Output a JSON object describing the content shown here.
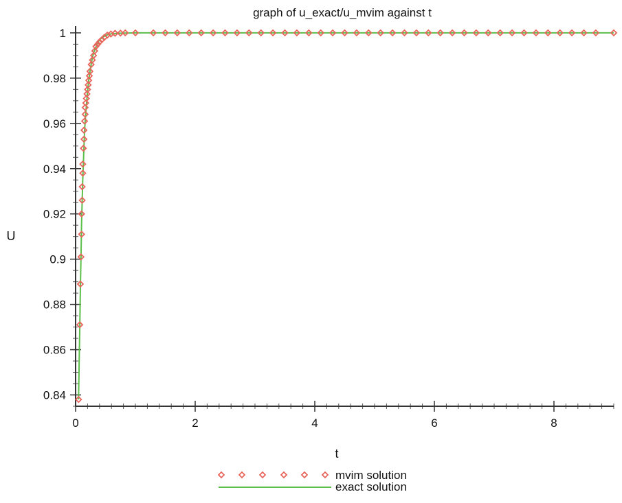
{
  "chart_data": {
    "type": "line",
    "title": "graph of u_exact/u_mvim against t",
    "xlabel": "t",
    "ylabel": "U",
    "xlim": [
      0,
      9
    ],
    "ylim": [
      0.835,
      1.003
    ],
    "x_ticks": [
      0,
      2,
      4,
      6,
      8
    ],
    "x_tick_labels": [
      "0",
      "2",
      "4",
      "6",
      "8"
    ],
    "y_ticks": [
      0.84,
      0.86,
      0.88,
      0.9,
      0.92,
      0.94,
      0.96,
      0.98,
      1
    ],
    "y_tick_labels": [
      "0.84",
      "0.86",
      "0.88",
      "0.9",
      "0.92",
      "0.94",
      "0.96",
      "0.98",
      "1"
    ],
    "grid": false,
    "legend_position": "bottom",
    "series": [
      {
        "name": "mvim solution",
        "style": "markers",
        "color": "#e8655c",
        "x": [
          0.05,
          0.07,
          0.08,
          0.09,
          0.1,
          0.1,
          0.11,
          0.11,
          0.12,
          0.12,
          0.13,
          0.14,
          0.14,
          0.15,
          0.16,
          0.16,
          0.17,
          0.18,
          0.19,
          0.2,
          0.21,
          0.22,
          0.23,
          0.24,
          0.26,
          0.28,
          0.3,
          0.32,
          0.34,
          0.37,
          0.4,
          0.44,
          0.48,
          0.53,
          0.59,
          0.66,
          0.75,
          0.83,
          1.0,
          1.3,
          1.5,
          1.7,
          1.9,
          2.1,
          2.3,
          2.5,
          2.7,
          2.9,
          3.1,
          3.3,
          3.5,
          3.7,
          3.9,
          4.1,
          4.3,
          4.5,
          4.7,
          4.9,
          5.1,
          5.3,
          5.5,
          5.7,
          5.9,
          6.1,
          6.3,
          6.5,
          6.7,
          6.9,
          7.1,
          7.3,
          7.5,
          7.7,
          7.9,
          8.1,
          8.3,
          8.5,
          8.7,
          9.0
        ],
        "y": [
          0.838,
          0.871,
          0.889,
          0.901,
          0.911,
          0.92,
          0.926,
          0.932,
          0.938,
          0.942,
          0.949,
          0.953,
          0.957,
          0.961,
          0.964,
          0.967,
          0.969,
          0.971,
          0.973,
          0.975,
          0.977,
          0.979,
          0.981,
          0.983,
          0.986,
          0.988,
          0.99,
          0.992,
          0.994,
          0.995,
          0.996,
          0.997,
          0.998,
          0.999,
          0.9995,
          0.9998,
          0.9999,
          1.0,
          1.0,
          1.0,
          1.0,
          1.0,
          1.0,
          1.0,
          1.0,
          1.0,
          1.0,
          1.0,
          1.0,
          1.0,
          1.0,
          1.0,
          1.0,
          1.0,
          1.0,
          1.0,
          1.0,
          1.0,
          1.0,
          1.0,
          1.0,
          1.0,
          1.0,
          1.0,
          1.0,
          1.0,
          1.0,
          1.0,
          1.0,
          1.0,
          1.0,
          1.0,
          1.0,
          1.0,
          1.0,
          1.0,
          1.0,
          1.0
        ]
      },
      {
        "name": "exact solution",
        "style": "line",
        "color": "#5bbf4a",
        "x": [
          0.05,
          0.06,
          0.07,
          0.08,
          0.09,
          0.1,
          0.11,
          0.12,
          0.13,
          0.14,
          0.15,
          0.16,
          0.18,
          0.2,
          0.22,
          0.24,
          0.26,
          0.28,
          0.3,
          0.33,
          0.36,
          0.4,
          0.45,
          0.5,
          0.55,
          0.6,
          0.7,
          0.8,
          1.0,
          1.5,
          2,
          3,
          4,
          5,
          6,
          7,
          8,
          9
        ],
        "y": [
          0.838,
          0.855,
          0.87,
          0.888,
          0.9,
          0.916,
          0.926,
          0.935,
          0.942,
          0.95,
          0.956,
          0.961,
          0.968,
          0.974,
          0.979,
          0.983,
          0.986,
          0.989,
          0.991,
          0.993,
          0.995,
          0.997,
          0.998,
          0.9988,
          0.9993,
          0.9996,
          0.9998,
          0.9999,
          1.0,
          1.0,
          1.0,
          1.0,
          1.0,
          1.0,
          1.0,
          1.0,
          1.0,
          1.0
        ]
      }
    ]
  }
}
